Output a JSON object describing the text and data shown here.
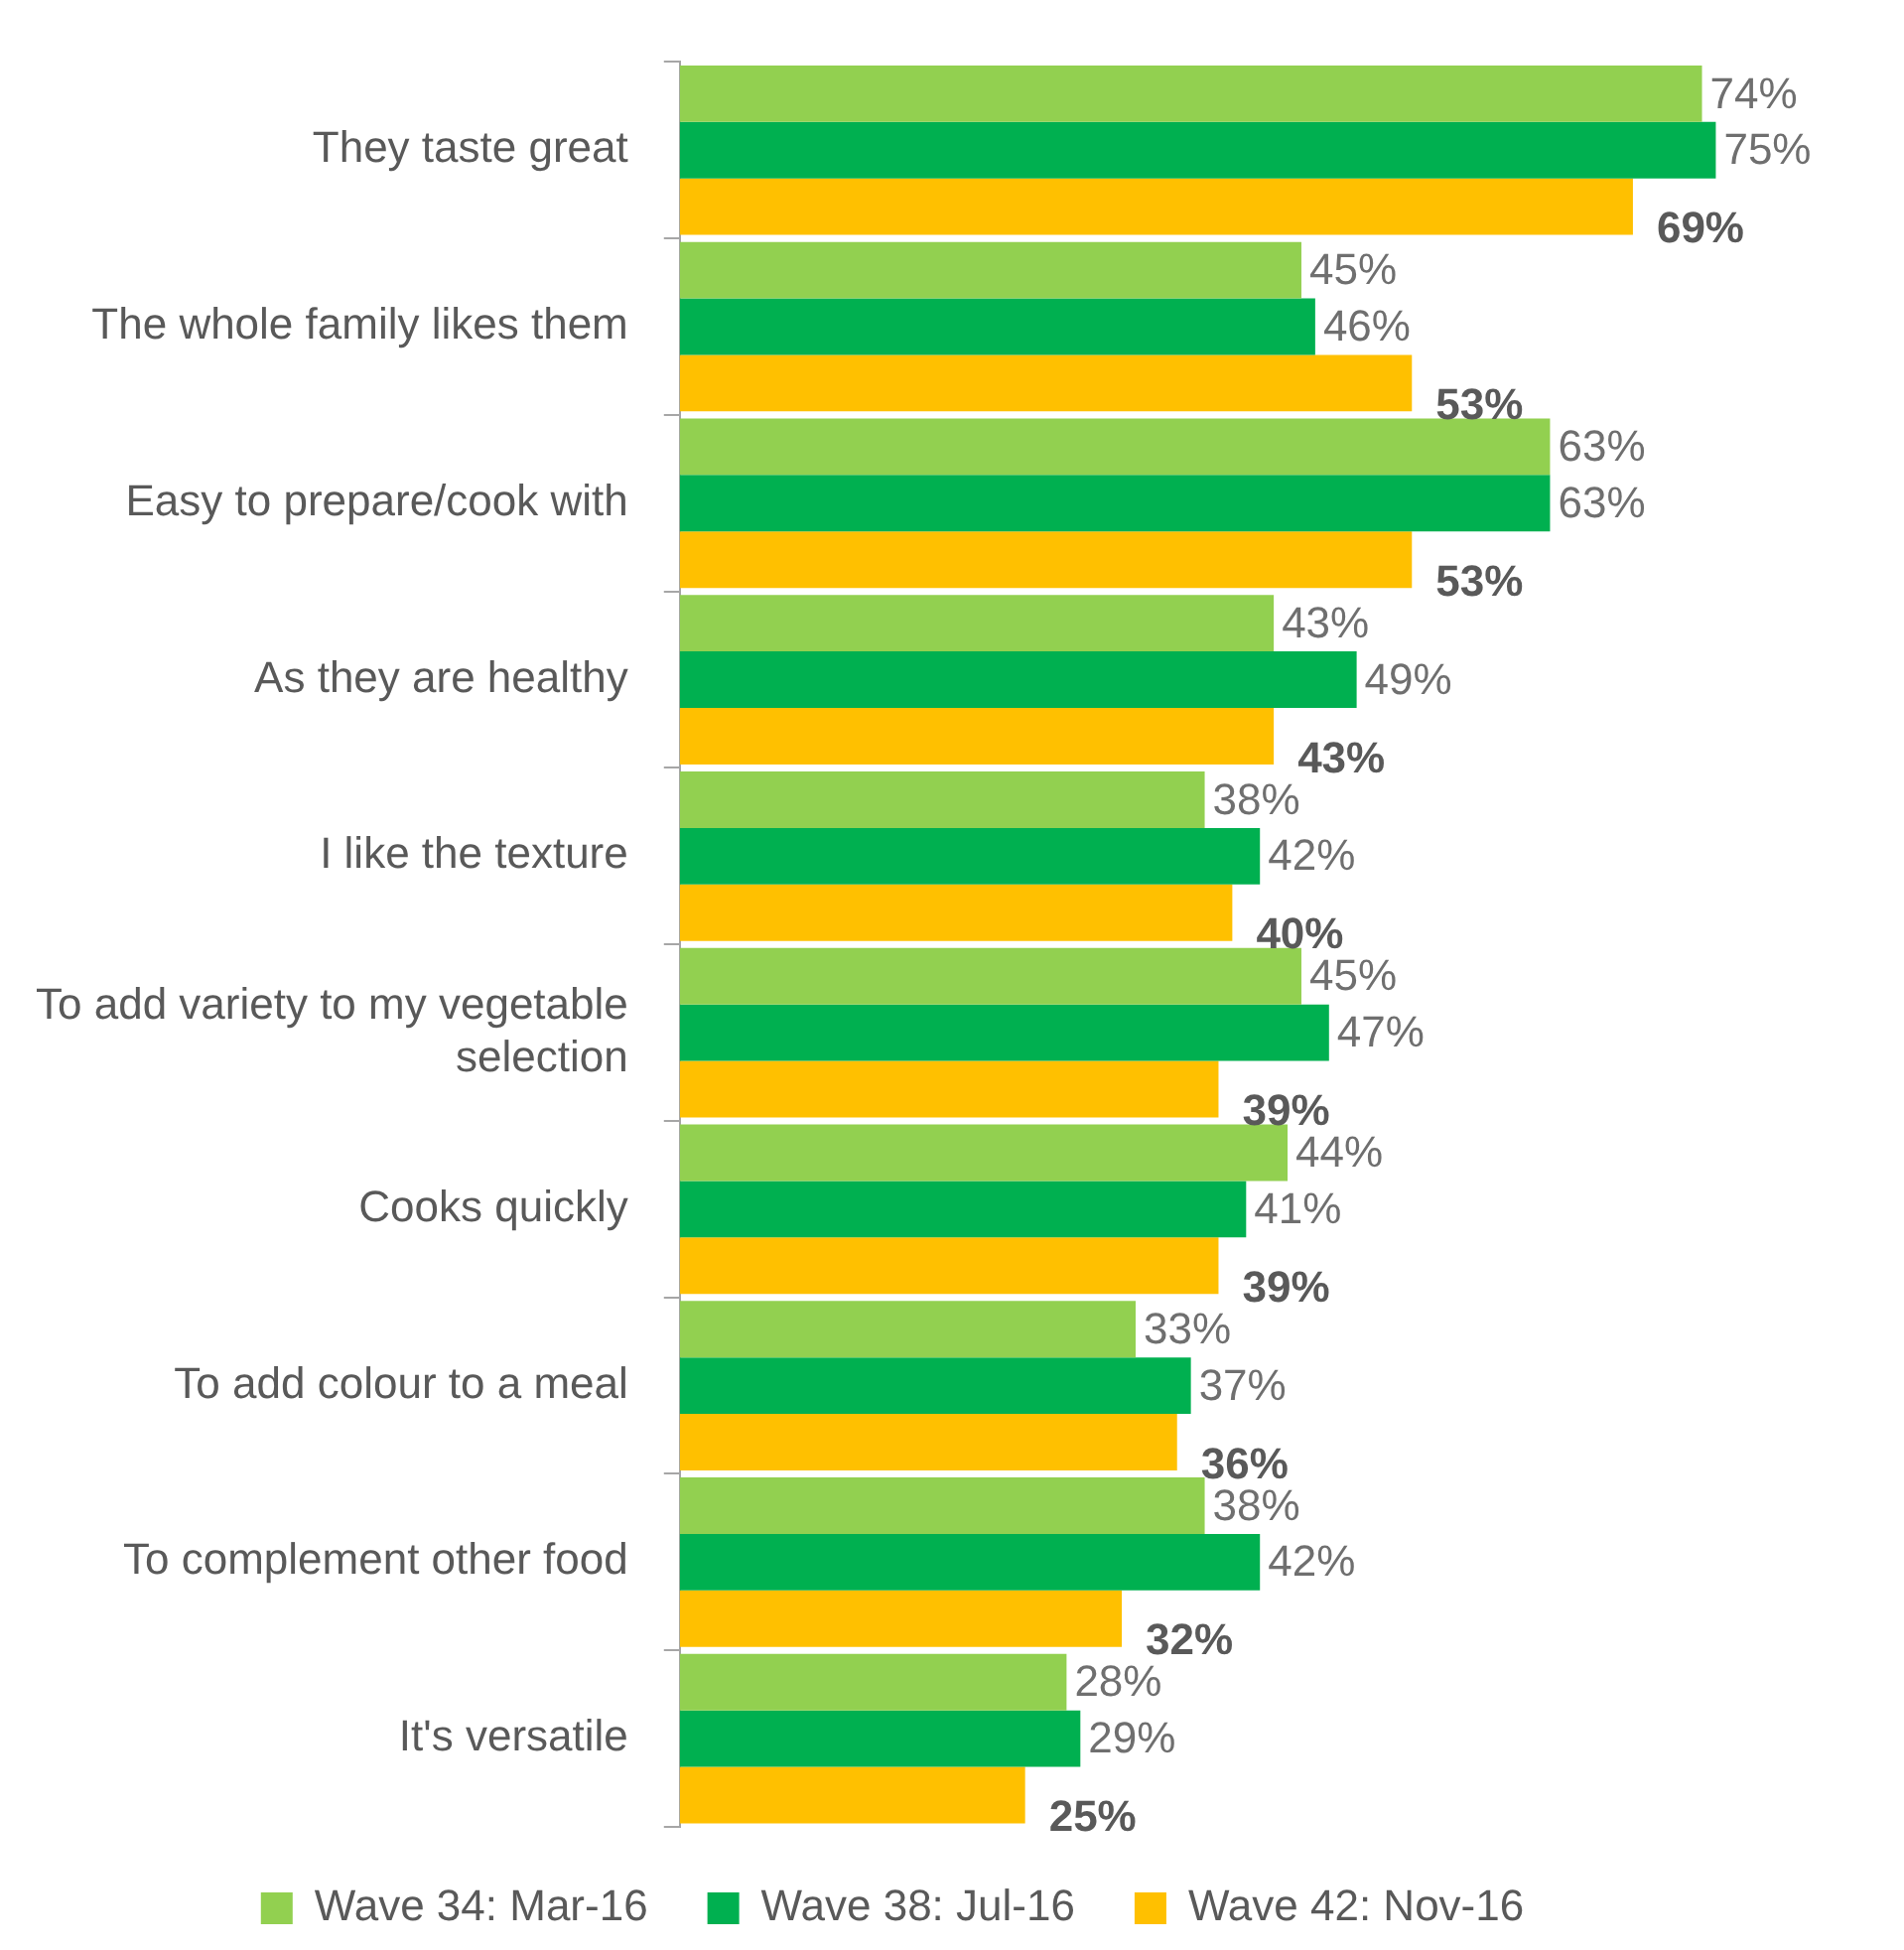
{
  "chart_data": {
    "type": "bar",
    "orientation": "horizontal",
    "categories": [
      "They taste great",
      "The whole family likes them",
      "Easy to prepare/cook with",
      "As they are healthy",
      "I like the texture",
      "To add variety to my vegetable selection",
      "Cooks quickly",
      "To add colour to a meal",
      "To complement other food",
      "It's versatile"
    ],
    "tick_labels": "y",
    "legend": "bottom",
    "series": [
      {
        "name": "Wave 34: Mar-16",
        "color": "#92d050",
        "values": [
          74,
          45,
          63,
          43,
          38,
          45,
          44,
          33,
          38,
          28
        ],
        "value_labels": [
          "74%",
          "45%",
          "63%",
          "43%",
          "38%",
          "45%",
          "44%",
          "33%",
          "38%",
          "28%"
        ]
      },
      {
        "name": "Wave 38: Jul-16",
        "color": "#00b050",
        "values": [
          75,
          46,
          63,
          49,
          42,
          47,
          41,
          37,
          42,
          29
        ],
        "value_labels": [
          "75%",
          "46%",
          "63%",
          "49%",
          "42%",
          "47%",
          "41%",
          "37%",
          "42%",
          "29%"
        ]
      },
      {
        "name": "Wave 42: Nov-16",
        "color": "#ffc000",
        "values": [
          69,
          53,
          53,
          43,
          40,
          39,
          39,
          36,
          32,
          25
        ],
        "value_labels": [
          "69%",
          "53%",
          "53%",
          "43%",
          "40%",
          "39%",
          "39%",
          "36%",
          "32%",
          "25%"
        ]
      }
    ]
  }
}
